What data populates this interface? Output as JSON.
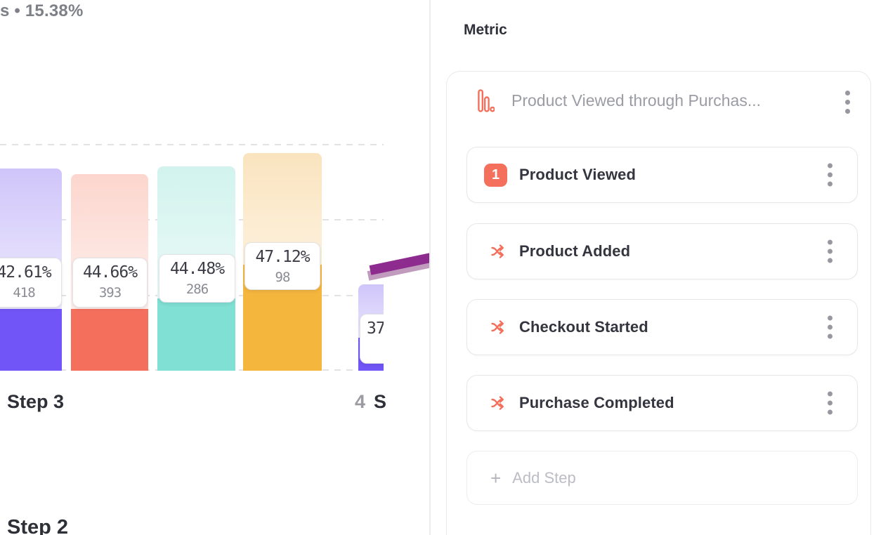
{
  "summary_partial": "s • 15.38%",
  "chart_data": {
    "type": "bar",
    "title": "Funnel conversion bars (partially visible group for Step 3 and start of next group)",
    "groups": [
      {
        "axis_label": "Step 3",
        "bars": [
          {
            "percent": "42.61%",
            "count": "418",
            "color_key": "violet"
          },
          {
            "percent": "44.66%",
            "count": "393",
            "color_key": "coral"
          },
          {
            "percent": "44.48%",
            "count": "286",
            "color_key": "teal"
          },
          {
            "percent": "47.12%",
            "count": "98",
            "color_key": "amber"
          }
        ]
      },
      {
        "axis_label_num": "4",
        "axis_label_partial": "S",
        "bars": [
          {
            "percent": "37",
            "count": "",
            "color_key": "violet"
          }
        ]
      }
    ],
    "ylim_note": "dashed horizontal gridlines, baseline at bottom"
  },
  "chart_axis": {
    "group1_label": "Step 3",
    "group2_num": "4",
    "group2_text": "S"
  },
  "next_section_heading": "Step 2",
  "panel": {
    "heading": "Metric",
    "metric_card": {
      "title": "Product Viewed through Purchas...",
      "icon": "funnel-bars-icon",
      "menu_icon": "kebab-menu-icon"
    },
    "steps": [
      {
        "type": "numbered",
        "badge": "1",
        "label": "Product Viewed"
      },
      {
        "type": "shuffle",
        "label": "Product Added"
      },
      {
        "type": "shuffle",
        "label": "Checkout Started"
      },
      {
        "type": "shuffle",
        "label": "Purchase Completed"
      }
    ],
    "add_step": {
      "plus": "+",
      "label": "Add Step"
    }
  },
  "annotation": {
    "shape": "arrow",
    "points_at": "Product Added step",
    "color": "#8d2b8e"
  },
  "colors": {
    "accent_coral": "#f4705c",
    "bar_violet": "#7155f6",
    "bar_coral": "#f4705c",
    "bar_teal": "#7fe0d3",
    "bar_amber": "#f5b63e",
    "arrow_purple": "#8d2b8e",
    "grid_gray": "#e2e2e6"
  }
}
